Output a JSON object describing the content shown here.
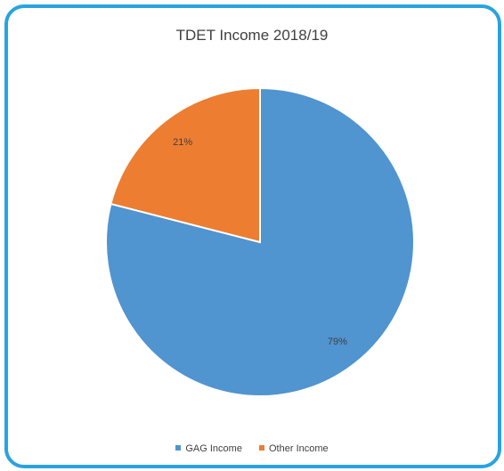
{
  "chart_data": {
    "type": "pie",
    "title": "TDET Income 2018/19",
    "slices": [
      {
        "name": "GAG Income",
        "value": 79,
        "label": "79%",
        "color": "#5094d0"
      },
      {
        "name": "Other Income",
        "value": 21,
        "label": "21%",
        "color": "#ed7d31"
      }
    ],
    "start_angle_deg": 0,
    "direction": "clockwise",
    "legend_position": "bottom"
  },
  "colors": {
    "frame_border": "#29a3e0",
    "slice_edge": "#ffffff"
  }
}
